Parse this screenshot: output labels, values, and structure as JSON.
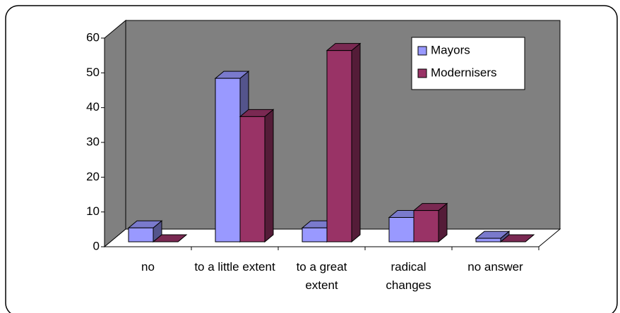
{
  "chart_data": {
    "type": "bar3d",
    "categories": [
      "no",
      "to a little extent",
      "to a great extent",
      "radical changes",
      "no answer"
    ],
    "series": [
      {
        "name": "Mayors",
        "color": "#9999ff",
        "values": [
          4,
          47,
          4,
          7,
          1
        ]
      },
      {
        "name": "Modernisers",
        "color": "#993366",
        "values": [
          0,
          36,
          55,
          9,
          0
        ]
      }
    ],
    "ylim": [
      0,
      60
    ],
    "yticks": [
      0,
      10,
      20,
      30,
      40,
      50,
      60
    ],
    "wall_color": "#808080",
    "legend": "upper right"
  }
}
